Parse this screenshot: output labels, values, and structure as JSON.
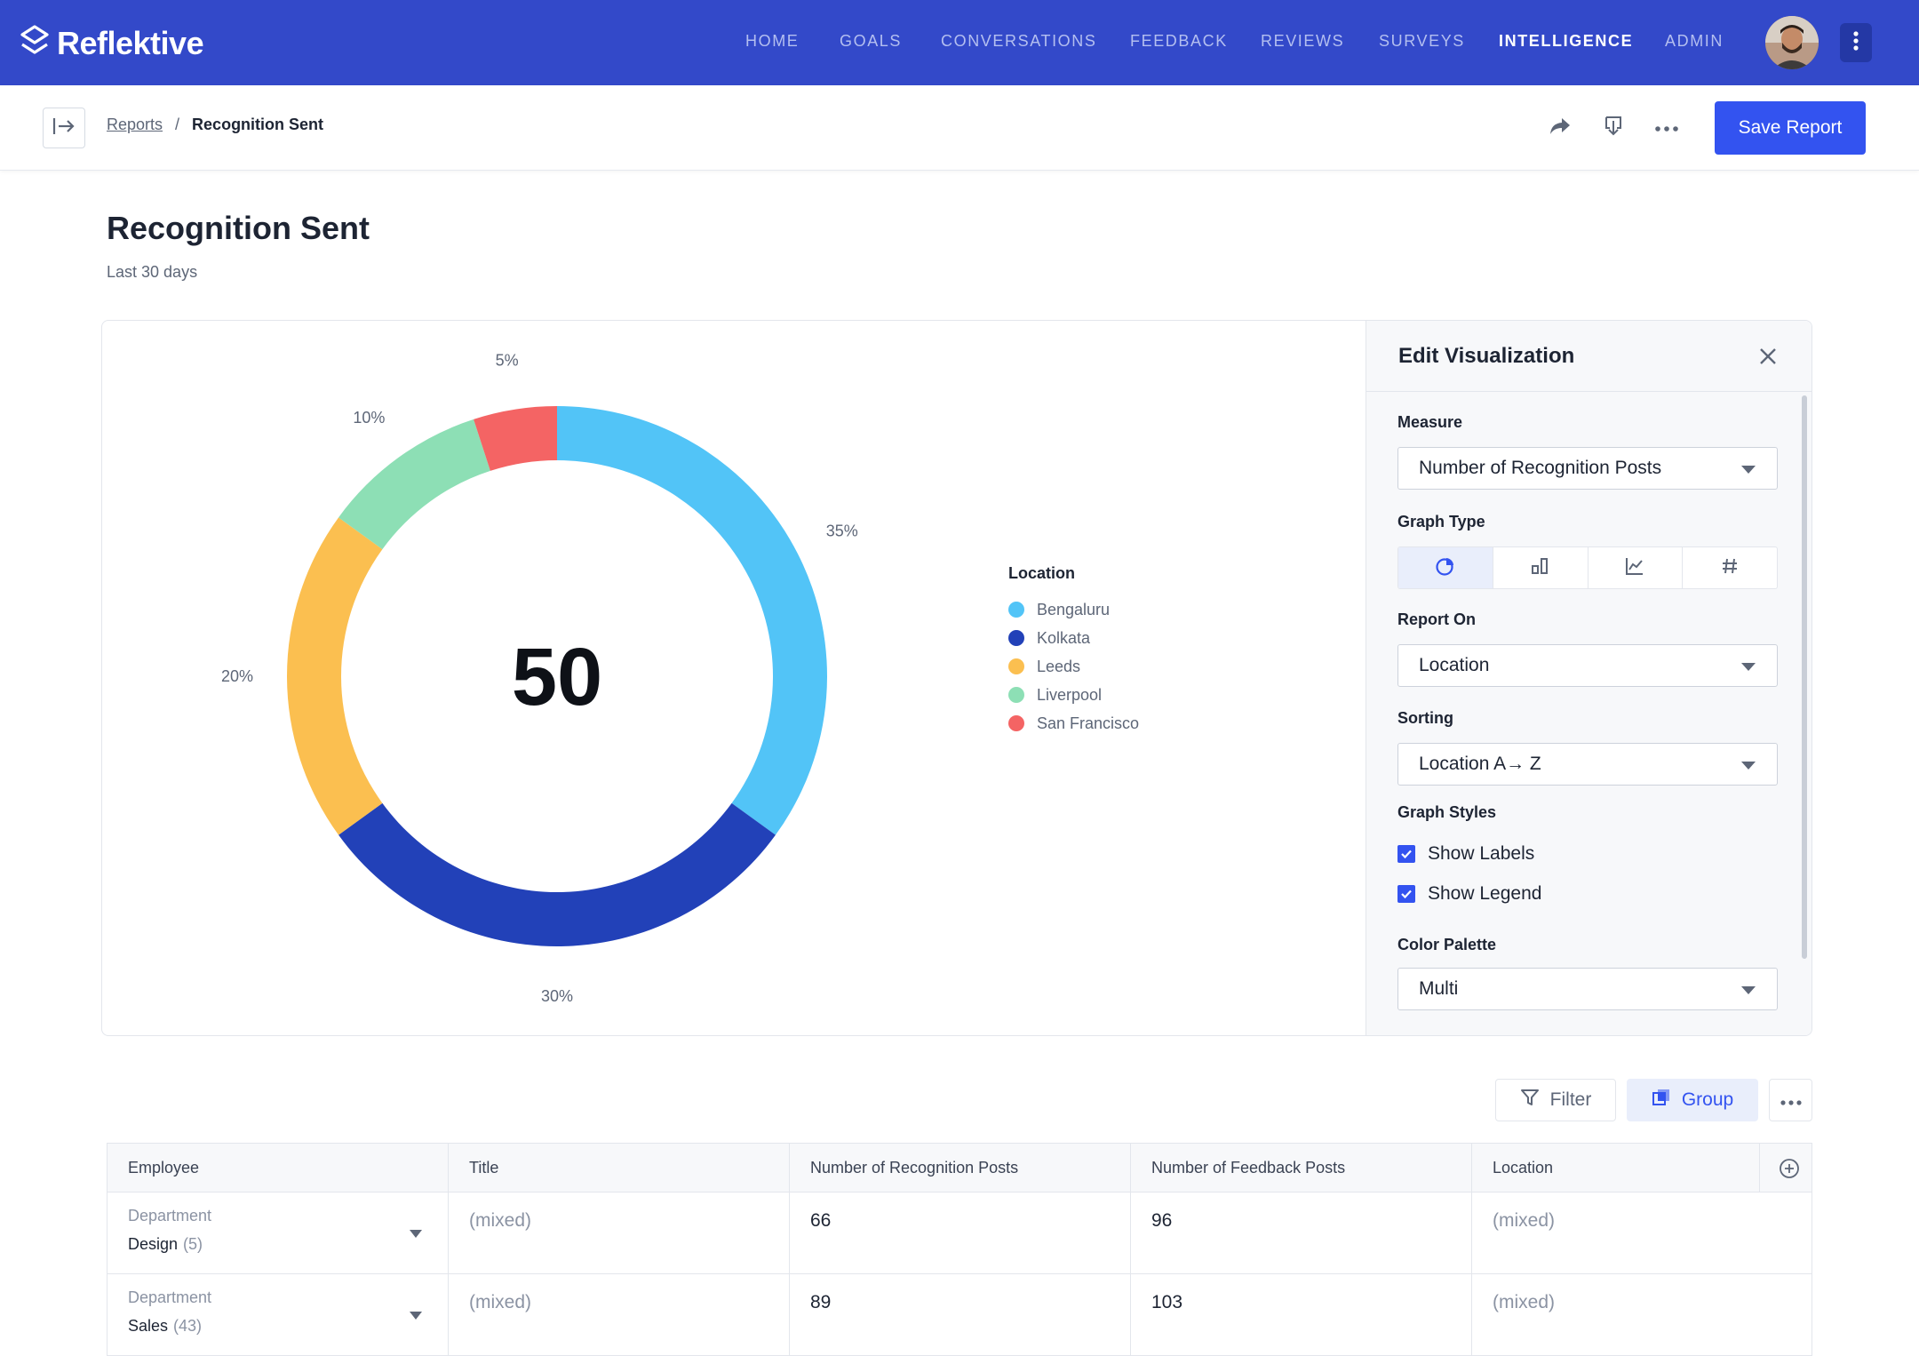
{
  "app": {
    "name": "Reflektive"
  },
  "nav": {
    "items": [
      {
        "label": "HOME",
        "active": false
      },
      {
        "label": "GOALS",
        "active": false
      },
      {
        "label": "CONVERSATIONS",
        "active": false
      },
      {
        "label": "FEEDBACK",
        "active": false
      },
      {
        "label": "REVIEWS",
        "active": false
      },
      {
        "label": "SURVEYS",
        "active": false
      },
      {
        "label": "INTELLIGENCE",
        "active": true
      },
      {
        "label": "ADMIN",
        "active": false
      }
    ]
  },
  "header": {
    "breadcrumb": {
      "parent": "Reports",
      "separator": "/",
      "current": "Recognition Sent"
    },
    "save_label": "Save Report"
  },
  "page": {
    "title": "Recognition Sent",
    "subtitle": "Last 30 days"
  },
  "chart_data": {
    "type": "pie",
    "center_value": "50",
    "legend_title": "Location",
    "legend_placement": "right",
    "slices": [
      {
        "label": "Bengaluru",
        "value": 35,
        "display": "35%",
        "color": "#52c4f7"
      },
      {
        "label": "Kolkata",
        "value": 30,
        "display": "30%",
        "color": "#2241b8"
      },
      {
        "label": "Leeds",
        "value": 20,
        "display": "20%",
        "color": "#fbbf50"
      },
      {
        "label": "Liverpool",
        "value": 10,
        "display": "10%",
        "color": "#8ddfb5"
      },
      {
        "label": "San Francisco",
        "value": 5,
        "display": "5%",
        "color": "#f46464"
      }
    ]
  },
  "panel": {
    "title": "Edit Visualization",
    "measure_label": "Measure",
    "measure_value": "Number of Recognition Posts",
    "graph_type_label": "Graph Type",
    "graph_types": [
      "pie",
      "bar",
      "line",
      "number"
    ],
    "graph_type_selected": "pie",
    "report_on_label": "Report On",
    "report_on_value": "Location",
    "sorting_label": "Sorting",
    "sorting_value": "Location A→ Z",
    "graph_styles_label": "Graph Styles",
    "show_labels": "Show Labels",
    "show_legend": "Show Legend",
    "color_palette_label": "Color Palette",
    "color_palette_value": "Multi"
  },
  "toolbar": {
    "filter_label": "Filter",
    "group_label": "Group"
  },
  "table": {
    "columns": [
      "Employee",
      "Title",
      "Number of Recognition Posts",
      "Number of Feedback Posts",
      "Location"
    ],
    "rows": [
      {
        "group_label": "Department",
        "group_value": "Design",
        "group_count": "(5)",
        "title": "(mixed)",
        "recognition": "66",
        "feedback": "96",
        "location": "(mixed)"
      },
      {
        "group_label": "Department",
        "group_value": "Sales",
        "group_count": "(43)",
        "title": "(mixed)",
        "recognition": "89",
        "feedback": "103",
        "location": "(mixed)"
      }
    ]
  },
  "colors": {
    "nav_bg": "#3349c9",
    "accent": "#3353f0"
  }
}
